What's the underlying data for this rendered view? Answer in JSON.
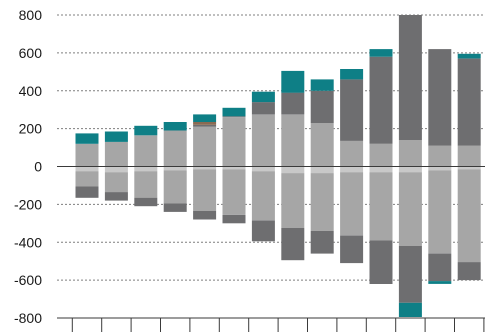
{
  "chart_data": {
    "type": "bar",
    "stacked": true,
    "ylim": [
      -800,
      800
    ],
    "yticks": [
      "800",
      "600",
      "400",
      "200",
      "0",
      "-200",
      "-400",
      "-600",
      "-800"
    ],
    "ytick_values": [
      800,
      600,
      400,
      200,
      0,
      -200,
      -400,
      -600,
      -800
    ],
    "grid": "horizontal dashed",
    "legend": "none",
    "n_categories": 14,
    "colors": {
      "teal": "#0e7f86",
      "dark_gray": "#6e6e70",
      "mid_gray": "#a6a6a6",
      "light_gray": "#c8c8c8",
      "brown": "#8a6a52"
    },
    "series": [
      {
        "color": "light_gray",
        "values": [
          -25,
          -30,
          -25,
          -20,
          -15,
          -15,
          -25,
          -35,
          -35,
          -30,
          -30,
          -30,
          -20,
          -15
        ]
      },
      {
        "color": "mid_gray",
        "values": [
          120,
          130,
          165,
          190,
          210,
          260,
          275,
          275,
          230,
          135,
          120,
          140,
          110,
          110
        ]
      },
      {
        "color": "mid_gray",
        "values": [
          -80,
          -105,
          -140,
          -175,
          -220,
          -240,
          -260,
          -290,
          -305,
          -335,
          -360,
          -390,
          -440,
          -490
        ]
      },
      {
        "color": "dark_gray",
        "values": [
          0,
          0,
          0,
          0,
          10,
          5,
          65,
          115,
          170,
          325,
          460,
          660,
          510,
          460
        ]
      },
      {
        "color": "dark_gray",
        "values": [
          -60,
          -45,
          -45,
          -45,
          -45,
          -45,
          -110,
          -170,
          -120,
          -145,
          -230,
          -300,
          -145,
          -95
        ]
      },
      {
        "color": "brown",
        "values": [
          0,
          0,
          0,
          0,
          15,
          0,
          0,
          0,
          0,
          0,
          0,
          0,
          0,
          0
        ]
      },
      {
        "color": "teal",
        "values": [
          55,
          55,
          50,
          45,
          40,
          45,
          55,
          115,
          60,
          55,
          40,
          0,
          0,
          25
        ]
      },
      {
        "color": "teal",
        "values": [
          0,
          0,
          0,
          0,
          0,
          0,
          0,
          0,
          0,
          0,
          0,
          -75,
          -15,
          0
        ]
      }
    ]
  }
}
